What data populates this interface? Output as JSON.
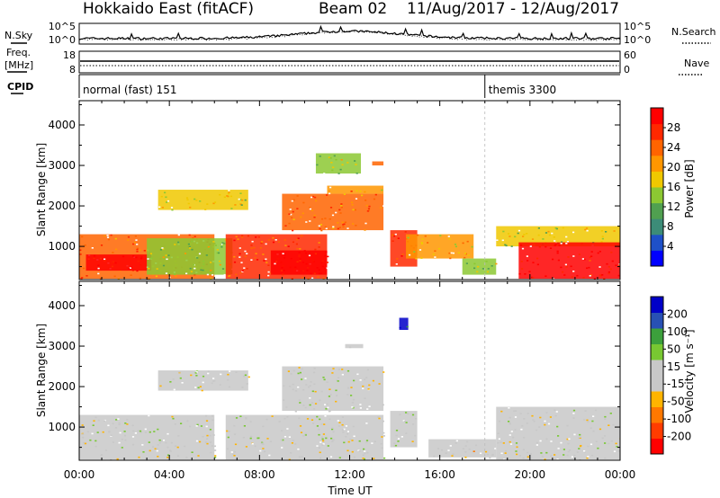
{
  "header": {
    "station": "Hokkaido East (fitACF)",
    "beam": "Beam 02",
    "dates": "11/Aug/2017 - 12/Aug/2017"
  },
  "strips": {
    "nsky_label": "N.Sky",
    "nsky_top_tick": "10^5",
    "nsky_bottom_tick": "10^0",
    "nsearch_label": "N.Search",
    "nsearch_top_tick": "10^5",
    "nsearch_bottom_tick": "10^0",
    "freq_label_1": "Freq.",
    "freq_label_2": "[MHz]",
    "freq_top_tick": "18",
    "freq_bottom_tick": "8",
    "nave_label": "Nave",
    "nave_top_tick": "60",
    "nave_bottom_tick": "0",
    "cpid_label": "CPID",
    "cpid_modes": [
      {
        "name": "normal (fast) 151",
        "start_hour": 0
      },
      {
        "name": "themis 3300",
        "start_hour": 18
      }
    ]
  },
  "colors": {
    "power": [
      "#0000ff",
      "#1e50c8",
      "#3c8c78",
      "#50a050",
      "#8cc832",
      "#f0c800",
      "#ff9600",
      "#ff6400",
      "#ff2800",
      "#ff0000"
    ],
    "velocity": [
      "#ff0000",
      "#ff3c00",
      "#ff7800",
      "#ffb400",
      "#c8c8c8",
      "#c8c8c8",
      "#78c832",
      "#3ca03c",
      "#2850b4",
      "#0000c8"
    ],
    "ground_scatter": "#c8c8c8"
  },
  "chart_data": [
    {
      "type": "heatmap",
      "panel": "power",
      "ylabel": "Slant Range [km]",
      "xlabel": "",
      "yticks": [
        "1000",
        "2000",
        "3000",
        "4000"
      ],
      "ylim": [
        180,
        4600
      ],
      "xlim_hours": [
        0,
        24
      ],
      "colorbar_label": "Power [dB]",
      "colorbar_ticks": [
        "4",
        "8",
        "12",
        "16",
        "20",
        "24",
        "28"
      ],
      "colorbar_range": [
        0,
        30
      ],
      "regions": [
        {
          "t0": 0.0,
          "t1": 6.0,
          "r0": 200,
          "r1": 1300,
          "value": 22
        },
        {
          "t0": 0.3,
          "t1": 3.2,
          "r0": 400,
          "r1": 800,
          "value": 28
        },
        {
          "t0": 3.0,
          "t1": 6.8,
          "r0": 300,
          "r1": 1200,
          "value": 14
        },
        {
          "t0": 3.5,
          "t1": 7.5,
          "r0": 1900,
          "r1": 2400,
          "value": 16
        },
        {
          "t0": 6.5,
          "t1": 11.0,
          "r0": 200,
          "r1": 1300,
          "value": 24
        },
        {
          "t0": 8.5,
          "t1": 11.0,
          "r0": 300,
          "r1": 900,
          "value": 28
        },
        {
          "t0": 9.0,
          "t1": 13.5,
          "r0": 1400,
          "r1": 2300,
          "value": 22
        },
        {
          "t0": 11.0,
          "t1": 13.5,
          "r0": 2300,
          "r1": 2500,
          "value": 20
        },
        {
          "t0": 10.5,
          "t1": 12.5,
          "r0": 2800,
          "r1": 3300,
          "value": 14
        },
        {
          "t0": 13.0,
          "t1": 13.5,
          "r0": 3000,
          "r1": 3100,
          "value": 22
        },
        {
          "t0": 13.8,
          "t1": 15.0,
          "r0": 500,
          "r1": 1400,
          "value": 26
        },
        {
          "t0": 14.5,
          "t1": 17.5,
          "r0": 700,
          "r1": 1300,
          "value": 18
        },
        {
          "t0": 17.0,
          "t1": 18.5,
          "r0": 300,
          "r1": 700,
          "value": 14
        },
        {
          "t0": 18.5,
          "t1": 24.0,
          "r0": 1000,
          "r1": 1500,
          "value": 16
        },
        {
          "t0": 19.5,
          "t1": 24.0,
          "r0": 200,
          "r1": 1100,
          "value": 28
        }
      ]
    },
    {
      "type": "heatmap",
      "panel": "velocity",
      "ylabel": "Slant Range [km]",
      "xlabel": "Time UT",
      "yticks": [
        "1000",
        "2000",
        "3000",
        "4000"
      ],
      "xticks": [
        "00:00",
        "04:00",
        "08:00",
        "12:00",
        "16:00",
        "20:00",
        "00:00"
      ],
      "ylim": [
        180,
        4600
      ],
      "xlim_hours": [
        0,
        24
      ],
      "colorbar_label": "Velocity [m s⁻¹]",
      "colorbar_ticks": [
        "-200",
        "-100",
        "-50",
        "-15",
        "15",
        "50",
        "100",
        "200"
      ],
      "colorbar_range": [
        -250,
        250
      ],
      "regions": [
        {
          "t0": 0.0,
          "t1": 6.0,
          "r0": 200,
          "r1": 1300,
          "value": 0
        },
        {
          "t0": 3.5,
          "t1": 7.5,
          "r0": 1900,
          "r1": 2400,
          "value": 0
        },
        {
          "t0": 6.5,
          "t1": 13.5,
          "r0": 200,
          "r1": 1300,
          "value": 0
        },
        {
          "t0": 9.0,
          "t1": 13.5,
          "r0": 1400,
          "r1": 2500,
          "value": 0
        },
        {
          "t0": 13.8,
          "t1": 15.0,
          "r0": 500,
          "r1": 1400,
          "value": 5
        },
        {
          "t0": 15.5,
          "t1": 18.5,
          "r0": 250,
          "r1": 700,
          "value": -40
        },
        {
          "t0": 18.5,
          "t1": 24.0,
          "r0": 200,
          "r1": 1500,
          "value": 0
        },
        {
          "t0": 11.8,
          "t1": 12.6,
          "r0": 2950,
          "r1": 3050,
          "value": 40
        },
        {
          "t0": 14.2,
          "t1": 14.6,
          "r0": 3400,
          "r1": 3700,
          "value": 220
        }
      ]
    }
  ]
}
